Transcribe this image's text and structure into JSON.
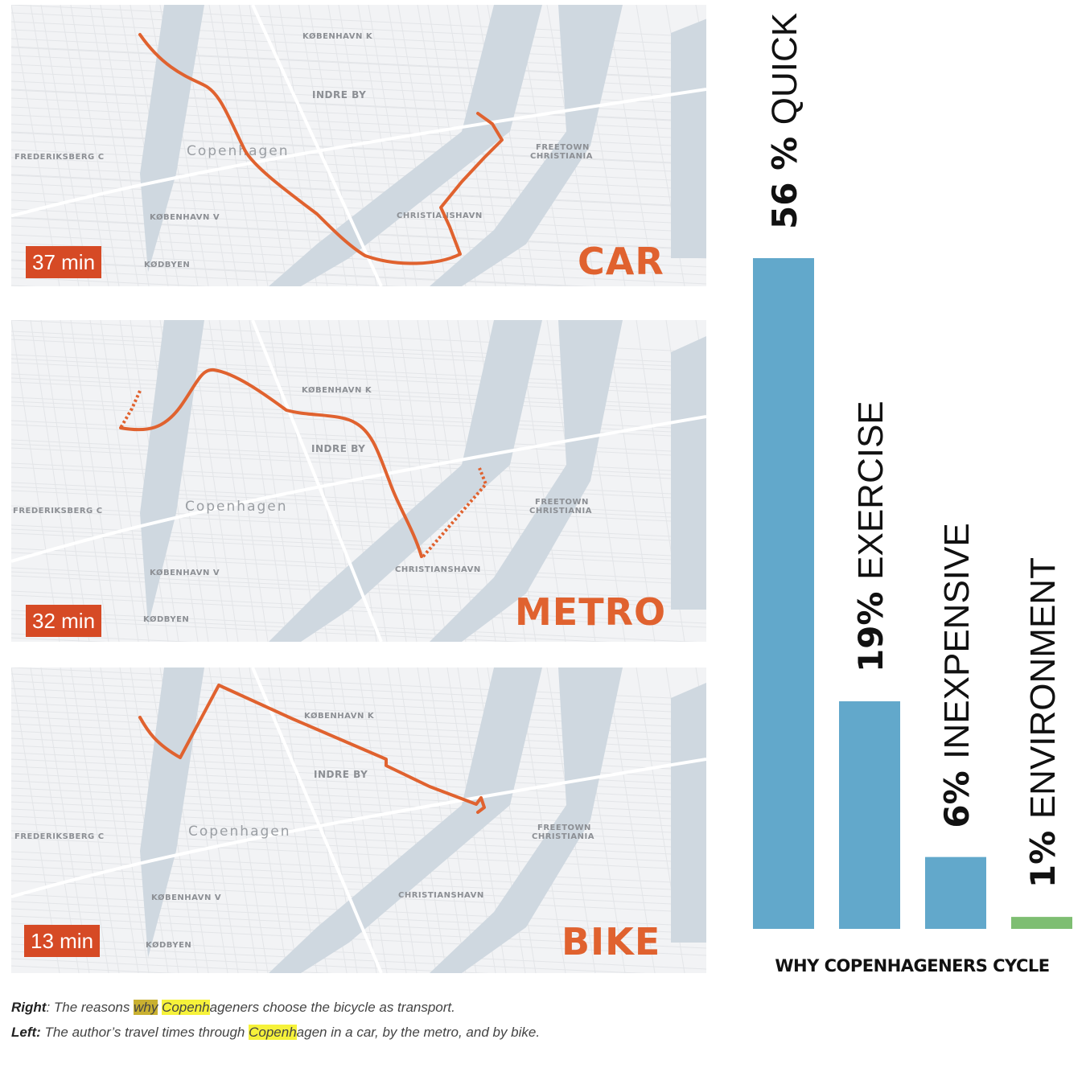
{
  "maps": [
    {
      "id": "car",
      "mode": "CAR",
      "time": "37 min",
      "labels": [
        "KØBENHAVN K",
        "INDRE BY",
        "FREDERIKSBERG C",
        "Copenhagen",
        "FREETOWN",
        "CHRISTIANIA",
        "CHRISTIANSHAVN",
        "KØBENHAVN V",
        "KØDBYEN"
      ]
    },
    {
      "id": "metro",
      "mode": "METRO",
      "time": "32 min",
      "labels": [
        "KØBENHAVN K",
        "INDRE BY",
        "FREDERIKSBERG C",
        "Copenhagen",
        "FREETOWN",
        "CHRISTIANIA",
        "CHRISTIANSHAVN",
        "KØBENHAVN V",
        "KØDBYEN"
      ]
    },
    {
      "id": "bike",
      "mode": "BIKE",
      "time": "13 min",
      "labels": [
        "KØBENHAVN K",
        "INDRE BY",
        "FREDERIKSBERG C",
        "Copenhagen",
        "FREETOWN",
        "CHRISTIANIA",
        "CHRISTIANSHAVN",
        "KØBENHAVN V",
        "KØDBYEN"
      ]
    }
  ],
  "colors": {
    "route": "#e0622f",
    "badge": "#d64a25",
    "bar_blue": "#62a8cb",
    "bar_green": "#7ebe72",
    "water": "#cfd8e0"
  },
  "chart_data": {
    "type": "bar",
    "title": "WHY COPENHAGENERS CYCLE",
    "categories": [
      "QUICK",
      "EXERCISE",
      "INEXPENSIVE",
      "ENVIRONMENT"
    ],
    "percent_labels": [
      "56 %",
      "19%",
      "6%",
      "1%"
    ],
    "values": [
      56,
      19,
      6,
      1
    ],
    "ylim": [
      0,
      56
    ],
    "bar_colors": [
      "#62a8cb",
      "#62a8cb",
      "#62a8cb",
      "#7ebe72"
    ],
    "grid": false
  },
  "caption": {
    "right_label": "Right",
    "right_pre": ": The reasons ",
    "right_hl1": "why",
    "right_mid": " ",
    "right_hl2": "Copenh",
    "right_post": "ageners choose the bicycle as transport.",
    "left_label": "Left:",
    "left_pre": " The author’s travel times through ",
    "left_hl": "Copenh",
    "left_post": "agen in a car, by the metro, and by bike."
  }
}
